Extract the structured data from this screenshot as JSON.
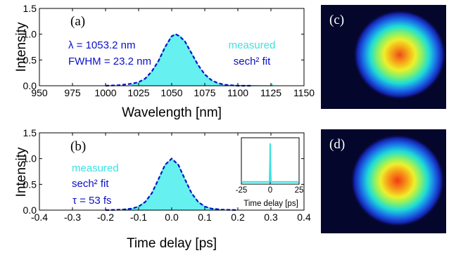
{
  "colors": {
    "measured": "#40e0e0",
    "measured_fill": "#66f0f0",
    "fit": "#0a10c8",
    "camera_bg": "#05062c"
  },
  "chart_data": [
    {
      "panel": "(a)",
      "type": "area",
      "xlabel": "Wavelength [nm]",
      "ylabel": "Intensity",
      "xlim": [
        950,
        1150
      ],
      "ylim": [
        0,
        1.5
      ],
      "xticks": [
        "950",
        "975",
        "1000",
        "1025",
        "1050",
        "1075",
        "1100",
        "1125",
        "1150"
      ],
      "yticks": [
        "0.0",
        "0.5",
        "1.0",
        "1.5"
      ],
      "annotations": [
        "λ = 1053.2 nm",
        "FWHM = 23.2 nm"
      ],
      "legend": [
        "measured",
        "sech² fit"
      ],
      "series": [
        {
          "name": "measured",
          "style": "filled",
          "x": [
            1020,
            1025,
            1030,
            1035,
            1040,
            1045,
            1050,
            1053,
            1056,
            1060,
            1065,
            1070,
            1075,
            1080,
            1085,
            1090,
            1124,
            1126
          ],
          "y": [
            0.03,
            0.06,
            0.13,
            0.27,
            0.49,
            0.76,
            0.97,
            1.0,
            0.97,
            0.86,
            0.63,
            0.39,
            0.21,
            0.1,
            0.04,
            0.01,
            0.0,
            0.03
          ]
        },
        {
          "name": "sech² fit",
          "style": "dashed",
          "x": [
            1000,
            1010,
            1020,
            1025,
            1030,
            1035,
            1040,
            1045,
            1050,
            1053,
            1056,
            1060,
            1065,
            1070,
            1075,
            1080,
            1085,
            1090,
            1100,
            1110
          ],
          "y": [
            0.0,
            0.01,
            0.04,
            0.07,
            0.14,
            0.28,
            0.48,
            0.75,
            0.96,
            1.0,
            0.96,
            0.86,
            0.63,
            0.4,
            0.22,
            0.11,
            0.05,
            0.02,
            0.0,
            0.0
          ]
        }
      ]
    },
    {
      "panel": "(b)",
      "type": "area",
      "xlabel": "Time delay [ps]",
      "ylabel": "Intensity",
      "xlim": [
        -0.4,
        0.4
      ],
      "ylim": [
        0,
        1.5
      ],
      "xticks": [
        "-0.4",
        "-0.3",
        "-0.2",
        "-0.1",
        "0.0",
        "0.1",
        "0.2",
        "0.3",
        "0.4"
      ],
      "yticks": [
        "0.0",
        "0.5",
        "1.0",
        "1.5"
      ],
      "annotations": [
        "τ = 53 fs"
      ],
      "legend": [
        "measured",
        "sech² fit"
      ],
      "series": [
        {
          "name": "measured",
          "style": "filled",
          "x": [
            -0.15,
            -0.12,
            -0.1,
            -0.08,
            -0.06,
            -0.04,
            -0.02,
            0.0,
            0.02,
            0.04,
            0.06,
            0.08,
            0.1,
            0.12,
            0.15
          ],
          "y": [
            0.01,
            0.03,
            0.07,
            0.16,
            0.33,
            0.6,
            0.88,
            1.0,
            0.88,
            0.6,
            0.33,
            0.16,
            0.07,
            0.03,
            0.01
          ]
        },
        {
          "name": "sech² fit",
          "style": "dashed",
          "x": [
            -0.2,
            -0.15,
            -0.12,
            -0.1,
            -0.08,
            -0.06,
            -0.04,
            -0.02,
            0.0,
            0.02,
            0.04,
            0.06,
            0.08,
            0.1,
            0.12,
            0.15,
            0.2
          ],
          "y": [
            0.0,
            0.01,
            0.03,
            0.07,
            0.16,
            0.33,
            0.6,
            0.88,
            1.0,
            0.88,
            0.6,
            0.33,
            0.16,
            0.07,
            0.03,
            0.01,
            0.0
          ]
        }
      ],
      "inset": {
        "xlabel": "Time delay [ps]",
        "xlim": [
          -25,
          25
        ],
        "ylim": [
          0,
          1
        ],
        "xticks": [
          "-25",
          "0",
          "25"
        ],
        "series": [
          {
            "name": "measured",
            "x": [
              -25,
              -0.6,
              -0.2,
              0.0,
              0.2,
              0.6,
              25
            ],
            "y": [
              0.02,
              0.02,
              0.5,
              1.0,
              0.5,
              0.02,
              0.02
            ]
          }
        ]
      }
    },
    {
      "panel": "(c)",
      "type": "heatmap",
      "description": "beam profile, centered spot"
    },
    {
      "panel": "(d)",
      "type": "heatmap",
      "description": "beam profile, centered spot"
    }
  ]
}
